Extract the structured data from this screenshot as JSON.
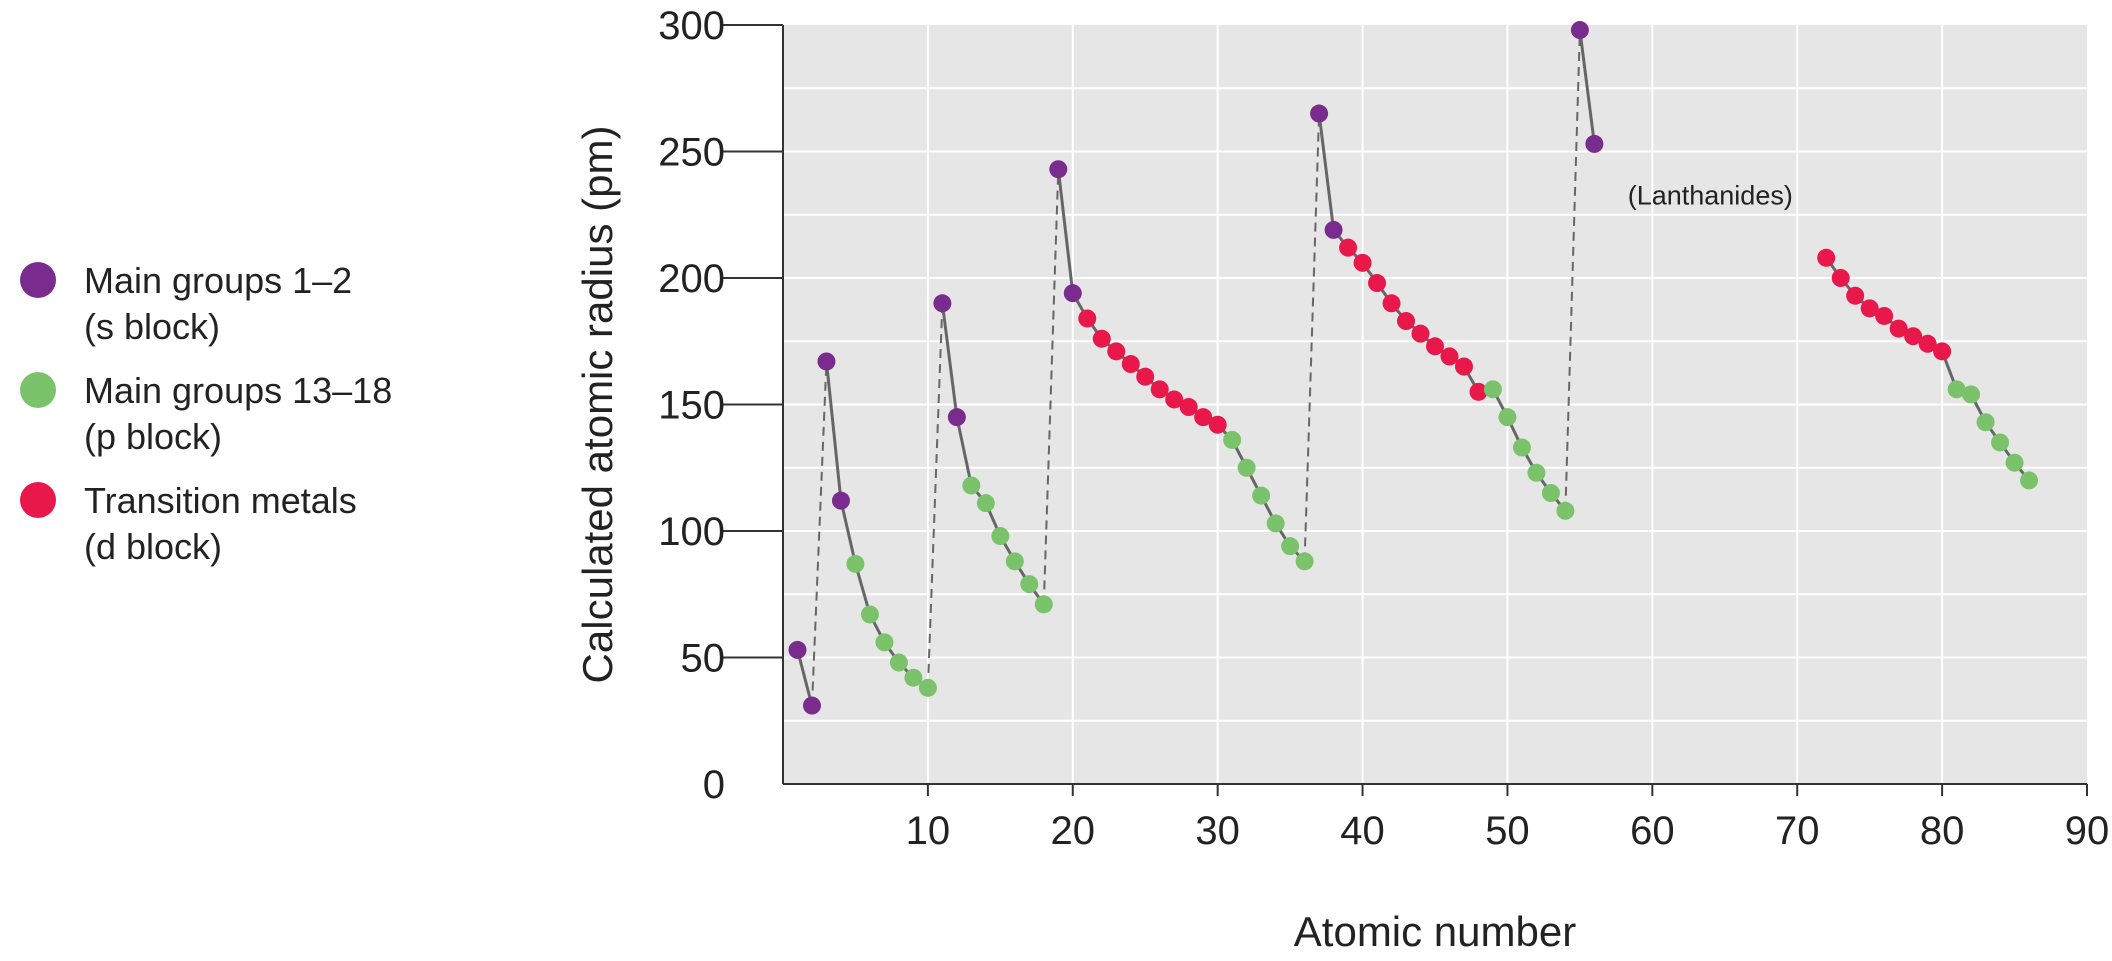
{
  "colors": {
    "s_block": "#7a2b8e",
    "p_block": "#7ac36a",
    "d_block": "#e8194a",
    "plot_bg": "#e6e6e6",
    "grid": "#ffffff",
    "line": "#666666"
  },
  "legend": {
    "items": [
      {
        "line1": "Main groups 1–2",
        "line2": "(s block)",
        "color": "#7a2b8e"
      },
      {
        "line1": "Main groups 13–18",
        "line2": "(p block)",
        "color": "#7ac36a"
      },
      {
        "line1": "Transition metals",
        "line2": "(d block)",
        "color": "#e8194a"
      }
    ]
  },
  "chart_data": {
    "type": "scatter",
    "xlabel": "Atomic number",
    "ylabel": "Calculated atomic radius (pm)",
    "xlim": [
      0,
      90
    ],
    "ylim": [
      0,
      300
    ],
    "x_ticks": [
      10,
      20,
      30,
      40,
      50,
      60,
      70,
      80,
      90
    ],
    "y_ticks": [
      0,
      50,
      100,
      150,
      200,
      250,
      300
    ],
    "grid": true,
    "legend_position": "left",
    "annotations": [
      {
        "text": "(Lanthanides)",
        "x": 64,
        "y": 229
      }
    ],
    "points": [
      {
        "z": 1,
        "r": 53,
        "block": "s"
      },
      {
        "z": 2,
        "r": 31,
        "block": "s"
      },
      {
        "z": 3,
        "r": 167,
        "block": "s"
      },
      {
        "z": 4,
        "r": 112,
        "block": "s"
      },
      {
        "z": 5,
        "r": 87,
        "block": "p"
      },
      {
        "z": 6,
        "r": 67,
        "block": "p"
      },
      {
        "z": 7,
        "r": 56,
        "block": "p"
      },
      {
        "z": 8,
        "r": 48,
        "block": "p"
      },
      {
        "z": 9,
        "r": 42,
        "block": "p"
      },
      {
        "z": 10,
        "r": 38,
        "block": "p"
      },
      {
        "z": 11,
        "r": 190,
        "block": "s"
      },
      {
        "z": 12,
        "r": 145,
        "block": "s"
      },
      {
        "z": 13,
        "r": 118,
        "block": "p"
      },
      {
        "z": 14,
        "r": 111,
        "block": "p"
      },
      {
        "z": 15,
        "r": 98,
        "block": "p"
      },
      {
        "z": 16,
        "r": 88,
        "block": "p"
      },
      {
        "z": 17,
        "r": 79,
        "block": "p"
      },
      {
        "z": 18,
        "r": 71,
        "block": "p"
      },
      {
        "z": 19,
        "r": 243,
        "block": "s"
      },
      {
        "z": 20,
        "r": 194,
        "block": "s"
      },
      {
        "z": 21,
        "r": 184,
        "block": "d"
      },
      {
        "z": 22,
        "r": 176,
        "block": "d"
      },
      {
        "z": 23,
        "r": 171,
        "block": "d"
      },
      {
        "z": 24,
        "r": 166,
        "block": "d"
      },
      {
        "z": 25,
        "r": 161,
        "block": "d"
      },
      {
        "z": 26,
        "r": 156,
        "block": "d"
      },
      {
        "z": 27,
        "r": 152,
        "block": "d"
      },
      {
        "z": 28,
        "r": 149,
        "block": "d"
      },
      {
        "z": 29,
        "r": 145,
        "block": "d"
      },
      {
        "z": 30,
        "r": 142,
        "block": "d"
      },
      {
        "z": 31,
        "r": 136,
        "block": "p"
      },
      {
        "z": 32,
        "r": 125,
        "block": "p"
      },
      {
        "z": 33,
        "r": 114,
        "block": "p"
      },
      {
        "z": 34,
        "r": 103,
        "block": "p"
      },
      {
        "z": 35,
        "r": 94,
        "block": "p"
      },
      {
        "z": 36,
        "r": 88,
        "block": "p"
      },
      {
        "z": 37,
        "r": 265,
        "block": "s"
      },
      {
        "z": 38,
        "r": 219,
        "block": "s"
      },
      {
        "z": 39,
        "r": 212,
        "block": "d"
      },
      {
        "z": 40,
        "r": 206,
        "block": "d"
      },
      {
        "z": 41,
        "r": 198,
        "block": "d"
      },
      {
        "z": 42,
        "r": 190,
        "block": "d"
      },
      {
        "z": 43,
        "r": 183,
        "block": "d"
      },
      {
        "z": 44,
        "r": 178,
        "block": "d"
      },
      {
        "z": 45,
        "r": 173,
        "block": "d"
      },
      {
        "z": 46,
        "r": 169,
        "block": "d"
      },
      {
        "z": 47,
        "r": 165,
        "block": "d"
      },
      {
        "z": 48,
        "r": 155,
        "block": "d"
      },
      {
        "z": 49,
        "r": 156,
        "block": "p"
      },
      {
        "z": 50,
        "r": 145,
        "block": "p"
      },
      {
        "z": 51,
        "r": 133,
        "block": "p"
      },
      {
        "z": 52,
        "r": 123,
        "block": "p"
      },
      {
        "z": 53,
        "r": 115,
        "block": "p"
      },
      {
        "z": 54,
        "r": 108,
        "block": "p"
      },
      {
        "z": 55,
        "r": 298,
        "block": "s"
      },
      {
        "z": 56,
        "r": 253,
        "block": "s"
      },
      {
        "z": 72,
        "r": 208,
        "block": "d"
      },
      {
        "z": 73,
        "r": 200,
        "block": "d"
      },
      {
        "z": 74,
        "r": 193,
        "block": "d"
      },
      {
        "z": 75,
        "r": 188,
        "block": "d"
      },
      {
        "z": 76,
        "r": 185,
        "block": "d"
      },
      {
        "z": 77,
        "r": 180,
        "block": "d"
      },
      {
        "z": 78,
        "r": 177,
        "block": "d"
      },
      {
        "z": 79,
        "r": 174,
        "block": "d"
      },
      {
        "z": 80,
        "r": 171,
        "block": "d"
      },
      {
        "z": 81,
        "r": 156,
        "block": "p"
      },
      {
        "z": 82,
        "r": 154,
        "block": "p"
      },
      {
        "z": 83,
        "r": 143,
        "block": "p"
      },
      {
        "z": 84,
        "r": 135,
        "block": "p"
      },
      {
        "z": 85,
        "r": 127,
        "block": "p"
      },
      {
        "z": 86,
        "r": 120,
        "block": "p"
      }
    ],
    "connector_segments": [
      {
        "from": 1,
        "to": 2,
        "style": "solid"
      },
      {
        "from": 2,
        "to": 3,
        "style": "dashed"
      },
      {
        "from": 3,
        "to": 10,
        "style": "solid"
      },
      {
        "from": 10,
        "to": 11,
        "style": "dashed"
      },
      {
        "from": 11,
        "to": 18,
        "style": "solid"
      },
      {
        "from": 18,
        "to": 19,
        "style": "dashed"
      },
      {
        "from": 19,
        "to": 36,
        "style": "solid"
      },
      {
        "from": 36,
        "to": 37,
        "style": "dashed"
      },
      {
        "from": 37,
        "to": 54,
        "style": "solid"
      },
      {
        "from": 54,
        "to": 55,
        "style": "dashed"
      },
      {
        "from": 55,
        "to": 56,
        "style": "solid"
      },
      {
        "from": 72,
        "to": 86,
        "style": "solid"
      }
    ]
  }
}
